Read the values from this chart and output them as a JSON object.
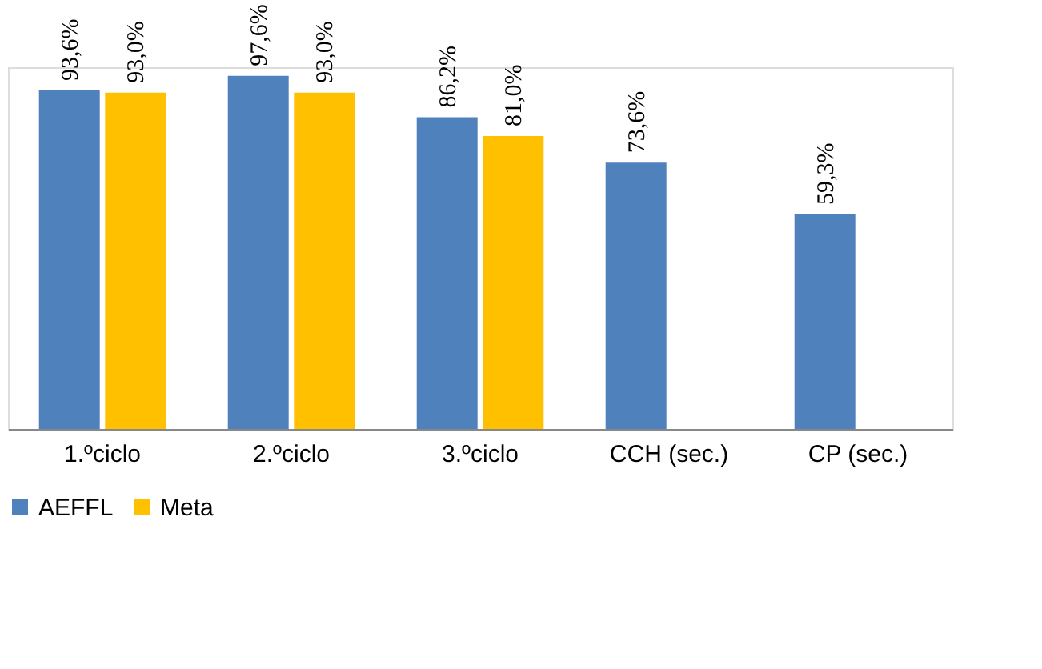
{
  "chart_data": {
    "type": "bar",
    "categories": [
      "1.ºciclo",
      "2.ºciclo",
      "3.ºciclo",
      "CCH (sec.)",
      "CP (sec.)"
    ],
    "series": [
      {
        "name": "AEFFL",
        "color": "#4f81bd",
        "values": [
          93.6,
          97.6,
          86.2,
          73.6,
          59.3
        ],
        "value_labels": [
          "93,6%",
          "97,6%",
          "86,2%",
          "73,6%",
          "59,3%"
        ]
      },
      {
        "name": "Meta",
        "color": "#ffc000",
        "values": [
          93.0,
          93.0,
          81.0,
          null,
          null
        ],
        "value_labels": [
          "93,0%",
          "93,0%",
          "81,0%",
          null,
          null
        ]
      }
    ],
    "legend": "bottom",
    "grid": false
  }
}
